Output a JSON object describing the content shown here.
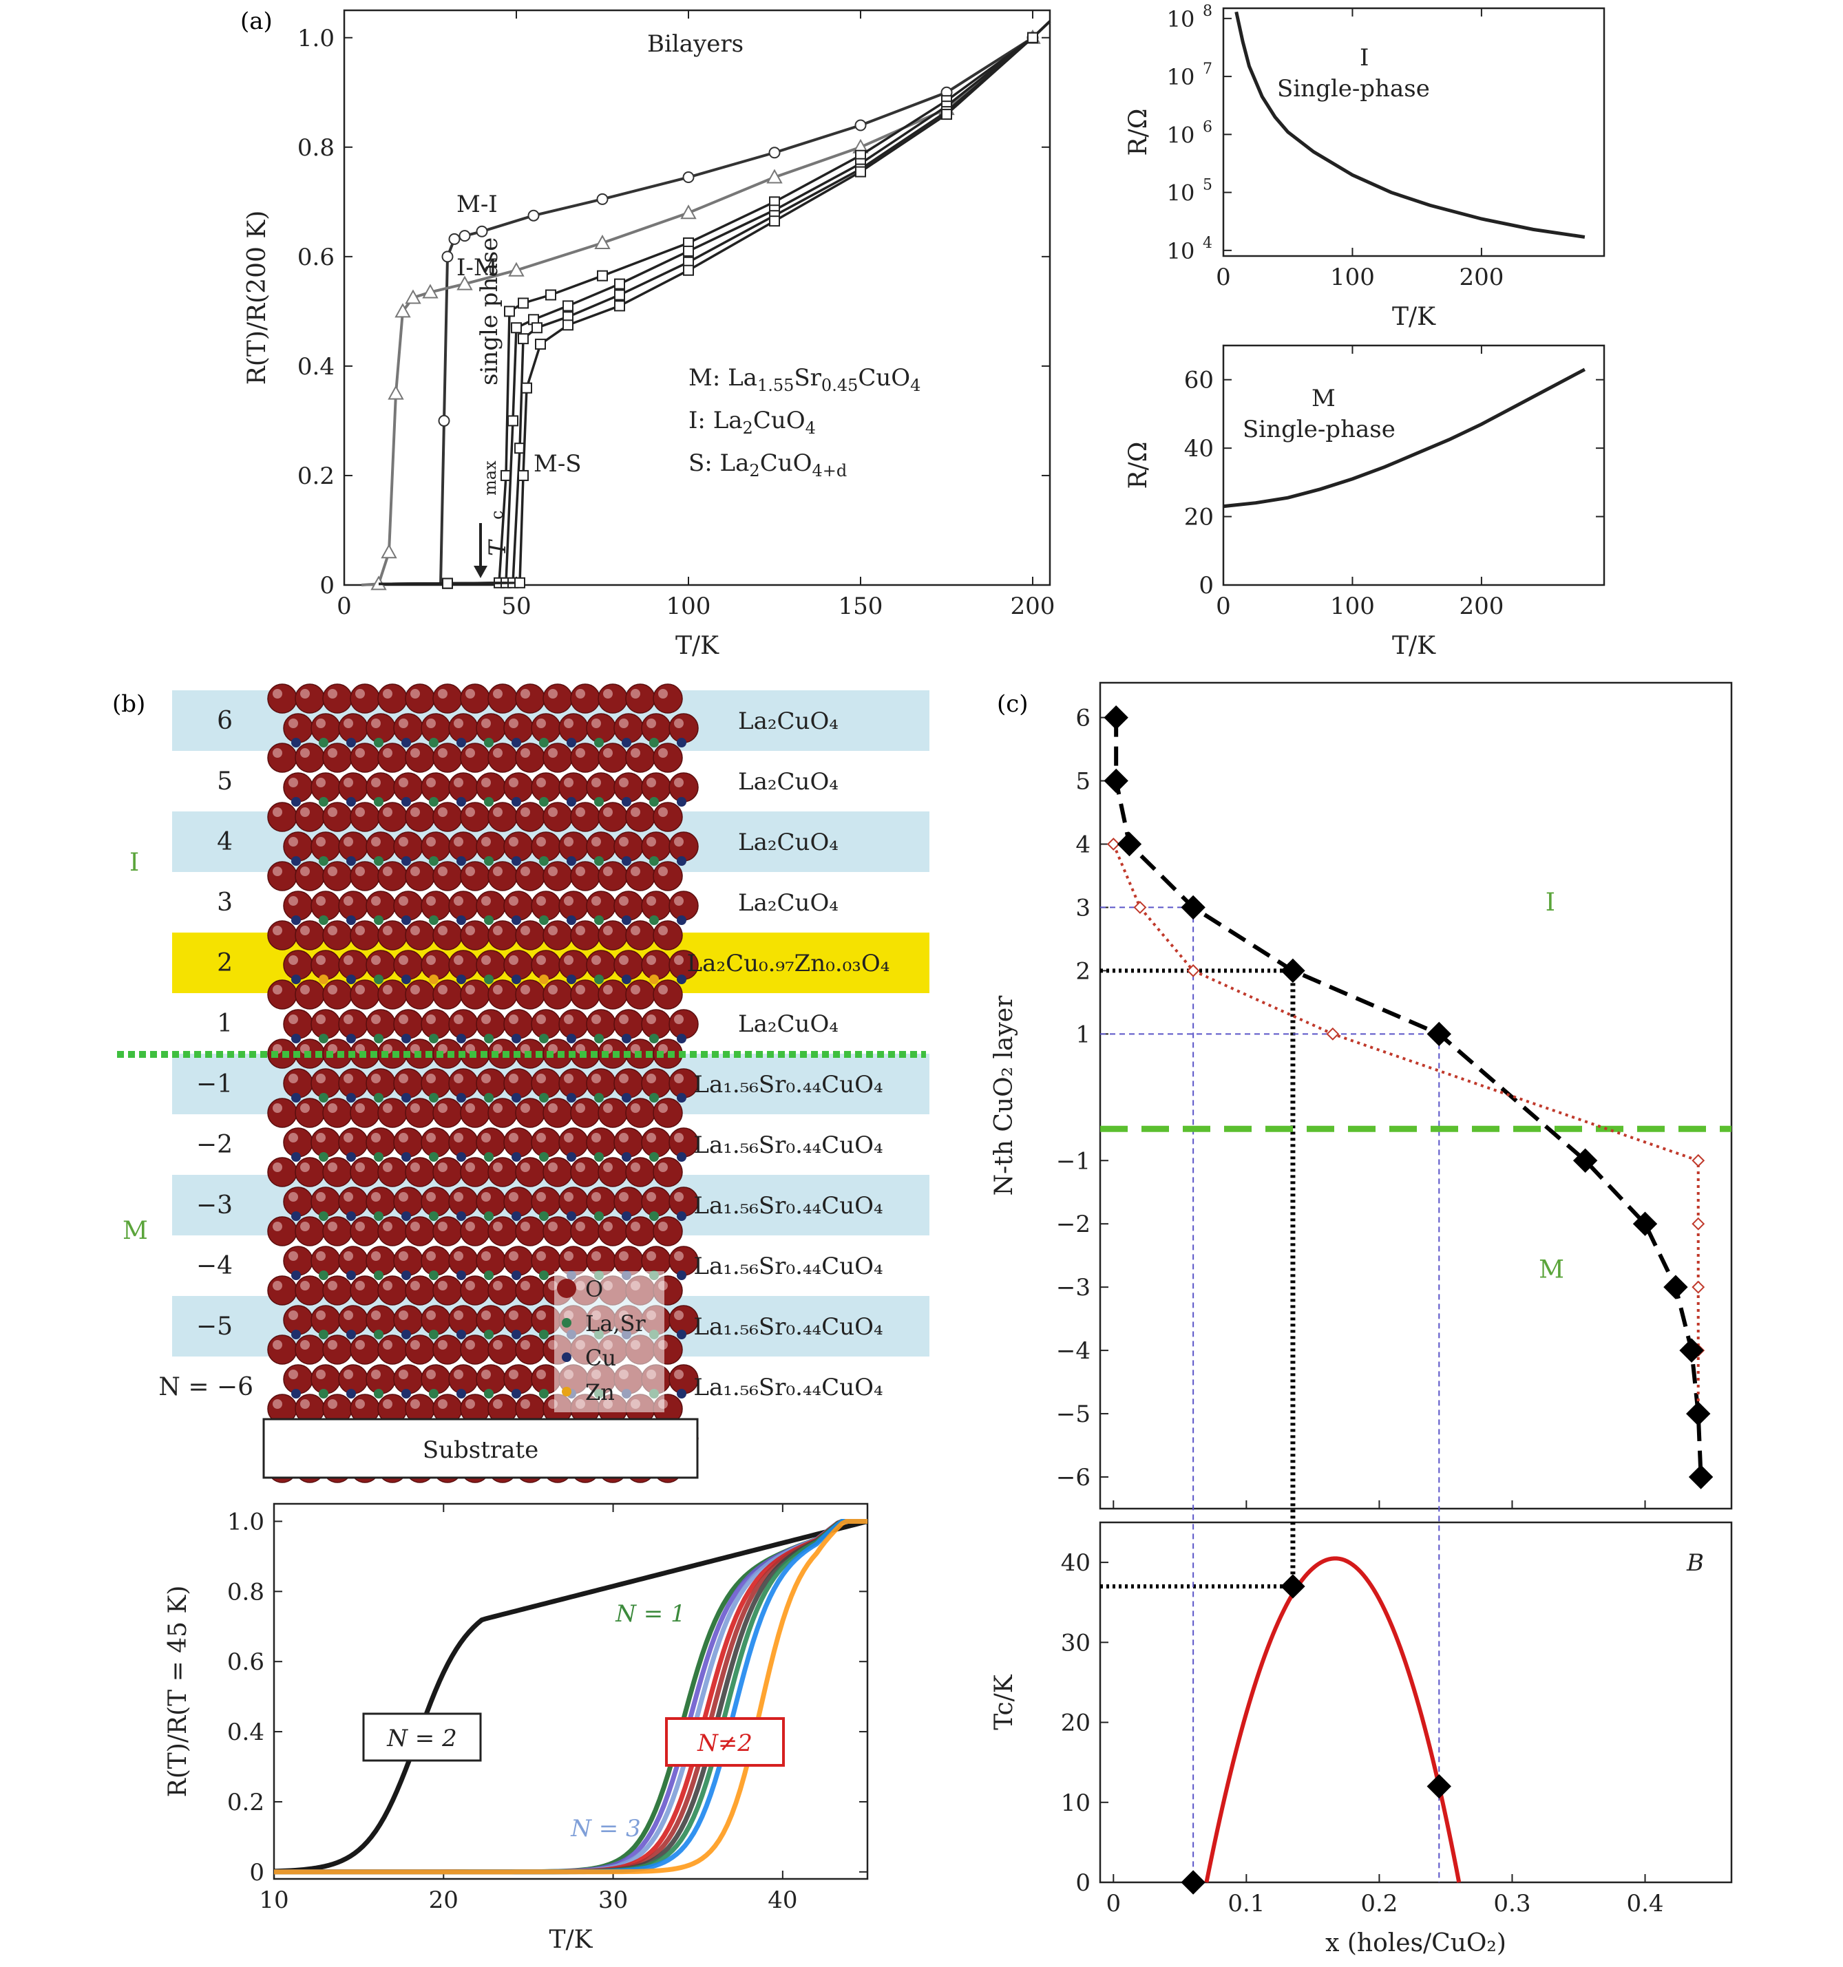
{
  "panel_labels": {
    "a": "(a)",
    "b": "(b)",
    "c": "(c)"
  },
  "chart_data": [
    {
      "id": "a_main",
      "type": "line",
      "xlabel": "T/K",
      "ylabel": "R(T)/R(200 K)",
      "xlim": [
        0,
        205
      ],
      "ylim": [
        0,
        1.05
      ],
      "xticks": [
        0,
        50,
        100,
        150,
        200
      ],
      "yticks": [
        0,
        0.2,
        0.4,
        0.6,
        0.8,
        1.0
      ],
      "title": "Bilayers",
      "series": [
        {
          "name": "M-I",
          "color": "#333333",
          "marker": "circle",
          "x": [
            28,
            29,
            30,
            32,
            35,
            40,
            55,
            75,
            100,
            125,
            150,
            175,
            200,
            205
          ],
          "y": [
            0.0,
            0.3,
            0.6,
            0.632,
            0.638,
            0.646,
            0.675,
            0.705,
            0.745,
            0.79,
            0.84,
            0.9,
            1.0,
            1.03
          ]
        },
        {
          "name": "I-M",
          "color": "#777777",
          "marker": "triangle",
          "x": [
            5,
            10,
            13,
            15,
            17,
            20,
            25,
            35,
            50,
            75,
            100,
            125,
            150,
            175,
            200,
            205
          ],
          "y": [
            0.0,
            0.002,
            0.06,
            0.35,
            0.5,
            0.525,
            0.535,
            0.55,
            0.575,
            0.625,
            0.68,
            0.745,
            0.8,
            0.87,
            1.0,
            1.03
          ]
        },
        {
          "name": "M-S (1)",
          "color": "#222222",
          "marker": "square",
          "x": [
            10,
            30,
            45,
            47,
            48,
            52,
            60,
            75,
            100,
            125,
            150,
            175,
            200,
            205
          ],
          "y": [
            0.002,
            0.003,
            0.004,
            0.2,
            0.5,
            0.515,
            0.53,
            0.565,
            0.625,
            0.7,
            0.785,
            0.885,
            1.0,
            1.03
          ]
        },
        {
          "name": "M-S (2)",
          "color": "#222222",
          "marker": "square",
          "x": [
            10,
            30,
            47,
            49,
            50,
            55,
            65,
            80,
            100,
            125,
            150,
            175,
            200,
            205
          ],
          "y": [
            0.002,
            0.003,
            0.004,
            0.3,
            0.47,
            0.485,
            0.51,
            0.55,
            0.61,
            0.685,
            0.77,
            0.875,
            1.0,
            1.03
          ]
        },
        {
          "name": "M-S (3)",
          "color": "#222222",
          "marker": "square",
          "x": [
            10,
            30,
            49,
            51,
            52,
            56,
            65,
            80,
            100,
            125,
            150,
            175,
            200,
            205
          ],
          "y": [
            0.002,
            0.003,
            0.004,
            0.25,
            0.45,
            0.47,
            0.49,
            0.53,
            0.59,
            0.675,
            0.76,
            0.865,
            1.0,
            1.03
          ]
        },
        {
          "name": "M-S (4)",
          "color": "#222222",
          "marker": "square",
          "x": [
            10,
            30,
            51,
            52,
            53,
            57,
            65,
            80,
            100,
            125,
            150,
            175,
            200,
            205
          ],
          "y": [
            0.002,
            0.003,
            0.004,
            0.2,
            0.36,
            0.44,
            0.475,
            0.51,
            0.575,
            0.665,
            0.755,
            0.86,
            1.0,
            1.03
          ]
        }
      ],
      "annotations": [
        "M-I",
        "I-M",
        "M-S",
        "single phase",
        "T",
        "max",
        "c"
      ],
      "legend_lines": [
        {
          "prefix": "M: La",
          "sub1": "1.55",
          "mid": "Sr",
          "sub2": "0.45",
          "suffix": "CuO",
          "sub3": "4"
        },
        {
          "prefix": "I: La",
          "sub1": "2",
          "mid": "CuO",
          "sub2": "4"
        },
        {
          "prefix": "S: La",
          "sub1": "2",
          "mid": "CuO",
          "sub2": "4+d"
        }
      ]
    },
    {
      "id": "a_inset_I",
      "type": "line",
      "xlabel": "T/K",
      "ylabel": "R/Ω",
      "yscale": "log",
      "xlim": [
        0,
        295
      ],
      "ylim": [
        8000,
        150000000
      ],
      "xticks": [
        0,
        100,
        200
      ],
      "yticks": [
        "10^4",
        "10^5",
        "10^6",
        "10^7",
        "10^8"
      ],
      "annotation": [
        "I",
        "Single-phase"
      ],
      "series": [
        {
          "color": "#222222",
          "x": [
            10,
            15,
            20,
            30,
            40,
            50,
            70,
            100,
            130,
            160,
            200,
            240,
            280
          ],
          "y": [
            130000000,
            40000000,
            15000000,
            4500000,
            2000000,
            1100000,
            500000,
            200000,
            100000,
            60000,
            35000,
            23000,
            17000
          ]
        }
      ]
    },
    {
      "id": "a_inset_M",
      "type": "line",
      "xlabel": "T/K",
      "ylabel": "R/Ω",
      "xlim": [
        0,
        295
      ],
      "ylim": [
        0,
        70
      ],
      "xticks": [
        0,
        100,
        200
      ],
      "yticks": [
        0,
        20,
        40,
        60
      ],
      "annotation": [
        "M",
        "Single-phase"
      ],
      "series": [
        {
          "color": "#222222",
          "x": [
            0,
            25,
            50,
            75,
            100,
            125,
            150,
            175,
            200,
            225,
            250,
            280
          ],
          "y": [
            23,
            24,
            25.5,
            28,
            31,
            34.5,
            38.5,
            42.5,
            47,
            52,
            57,
            63
          ]
        }
      ]
    },
    {
      "id": "b_structure",
      "type": "table",
      "rows": [
        {
          "n": "6",
          "formula": "La₂CuO₄",
          "band": "blue"
        },
        {
          "n": "5",
          "formula": "La₂CuO₄",
          "band": "none"
        },
        {
          "n": "4",
          "formula": "La₂CuO₄",
          "band": "blue"
        },
        {
          "n": "3",
          "formula": "La₂CuO₄",
          "band": "none"
        },
        {
          "n": "2",
          "formula": "La₂Cu₀.₉₇Zn₀.₀₃O₄",
          "band": "yellow"
        },
        {
          "n": "1",
          "formula": "La₂CuO₄",
          "band": "none"
        },
        {
          "n": "−1",
          "formula": "La₁.₅₆Sr₀.₄₄CuO₄",
          "band": "blue"
        },
        {
          "n": "−2",
          "formula": "La₁.₅₆Sr₀.₄₄CuO₄",
          "band": "none"
        },
        {
          "n": "−3",
          "formula": "La₁.₅₆Sr₀.₄₄CuO₄",
          "band": "blue"
        },
        {
          "n": "−4",
          "formula": "La₁.₅₆Sr₀.₄₄CuO₄",
          "band": "none"
        },
        {
          "n": "−5",
          "formula": "La₁.₅₆Sr₀.₄₄CuO₄",
          "band": "blue"
        },
        {
          "n": "N = −6",
          "formula": "La₁.₅₆Sr₀.₄₄CuO₄",
          "band": "none"
        }
      ],
      "region_labels": [
        "I",
        "M"
      ],
      "substrate": "Substrate",
      "atom_legend": [
        {
          "label": "O",
          "color": "#8b1a1a"
        },
        {
          "label": "La,Sr",
          "color": "#2e7d4a"
        },
        {
          "label": "Cu",
          "color": "#1f2f6b"
        },
        {
          "label": "Zn",
          "color": "#e8a317"
        }
      ]
    },
    {
      "id": "b_transport",
      "type": "line",
      "xlabel": "T/K",
      "ylabel": "R(T)/R(T = 45 K)",
      "xlim": [
        10,
        45
      ],
      "ylim": [
        -0.02,
        1.05
      ],
      "xticks": [
        10,
        20,
        30,
        40
      ],
      "yticks": [
        0,
        0.2,
        0.4,
        0.6,
        0.8,
        1.0
      ],
      "labels": [
        "N = 2",
        "N≠2",
        "N = 1",
        "N = 3"
      ],
      "series": [
        {
          "name": "N = 2",
          "color": "#000000",
          "Tc": 18.3,
          "width": 1.4,
          "onset": 0.72
        },
        {
          "name": "N = 1",
          "color": "#1e6b2e",
          "Tc": 34.0,
          "width": 1.2
        },
        {
          "color": "#6a5acd",
          "Tc": 34.4,
          "width": 1.2
        },
        {
          "name": "N = 3",
          "color": "#7f9fd8",
          "Tc": 34.8,
          "width": 1.2
        },
        {
          "color": "#d62020",
          "Tc": 35.3,
          "width": 1.2
        },
        {
          "color": "#a33",
          "Tc": 35.7,
          "width": 1.2
        },
        {
          "color": "#444444",
          "Tc": 36.1,
          "width": 1.2
        },
        {
          "color": "#2e8b57",
          "Tc": 36.5,
          "width": 1.2
        },
        {
          "color": "#1c86ee",
          "Tc": 37.0,
          "width": 1.2
        },
        {
          "color": "#ff9a1a",
          "Tc": 38.6,
          "width": 1.1
        }
      ]
    },
    {
      "id": "c_top",
      "type": "scatter",
      "xlabel": "",
      "ylabel": "N-th CuO₂ layer",
      "xlim": [
        -0.01,
        0.465
      ],
      "ylim": [
        -6.5,
        6.55
      ],
      "xticks": [
        0,
        0.1,
        0.2,
        0.3,
        0.4
      ],
      "yticks": [
        6,
        5,
        4,
        3,
        2,
        1,
        -1,
        -2,
        -3,
        -4,
        -5,
        -6
      ],
      "region_labels": [
        "I",
        "M"
      ],
      "series": [
        {
          "name": "filled",
          "color": "#000000",
          "marker": "diamond",
          "x": [
            0.002,
            0.002,
            0.012,
            0.06,
            0.135,
            0.245,
            0.355,
            0.4,
            0.423,
            0.435,
            0.44,
            0.442
          ],
          "y": [
            6,
            5,
            4,
            3,
            2,
            1,
            -1,
            -2,
            -3,
            -4,
            -5,
            -6
          ]
        },
        {
          "name": "open",
          "color": "#c0392b",
          "marker": "diamond-open",
          "x": [
            0.0,
            0.02,
            0.06,
            0.165,
            0.44,
            0.44,
            0.44,
            0.44,
            0.44
          ],
          "y": [
            4,
            3,
            2,
            1,
            -1,
            -2,
            -3,
            -4,
            -5
          ]
        }
      ]
    },
    {
      "id": "c_bottom",
      "type": "line",
      "xlabel": "x (holes/CuO₂)",
      "ylabel": "Tc/K",
      "xlim": [
        -0.01,
        0.465
      ],
      "ylim": [
        0,
        45
      ],
      "xticks": [
        0,
        0.1,
        0.2,
        0.3,
        0.4
      ],
      "yticks": [
        0,
        10,
        20,
        30,
        40
      ],
      "annotation": "B",
      "dome": {
        "color": "#d41a1a",
        "x0": 0.07,
        "x1": 0.26,
        "peak": 40.5
      },
      "points": {
        "color": "#000000",
        "x": [
          0.06,
          0.135,
          0.245
        ],
        "y": [
          0,
          37,
          12
        ]
      }
    }
  ]
}
